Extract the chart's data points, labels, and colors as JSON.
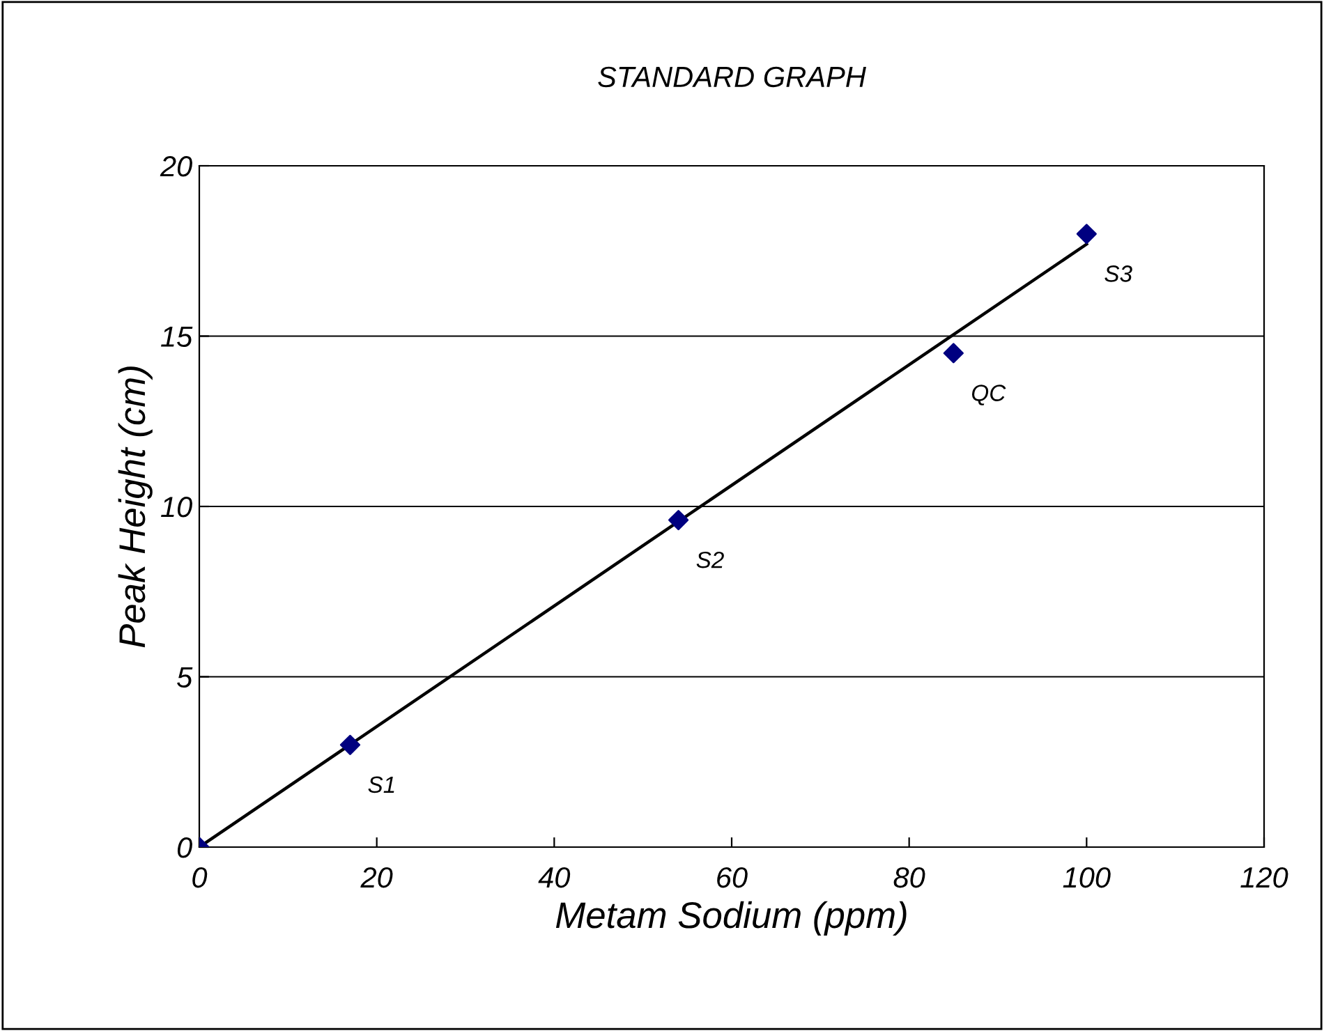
{
  "chart_data": {
    "type": "scatter",
    "title": "STANDARD GRAPH",
    "xlabel": "Metam Sodium (ppm)",
    "ylabel": "Peak Height (cm)",
    "series": [
      {
        "color": "#000080",
        "marker": "diamond",
        "x": [
          0,
          17,
          54,
          85,
          100
        ],
        "values": [
          0,
          3.0,
          9.6,
          14.5,
          18.0
        ]
      },
      {
        "type": "line",
        "color": "#000000",
        "marker": "none",
        "line_style": "solid",
        "x": [
          0,
          100
        ],
        "values": [
          0,
          17.7
        ]
      }
    ],
    "annotations": [
      {
        "text": "S1",
        "x": 17,
        "y": 3.0
      },
      {
        "text": "S2",
        "x": 54,
        "y": 9.6
      },
      {
        "text": "QC",
        "x": 85,
        "y": 14.5
      },
      {
        "text": "S3",
        "x": 100,
        "y": 18.0
      }
    ],
    "xlim": [
      0,
      120
    ],
    "xticks": [
      0,
      20,
      40,
      60,
      80,
      100,
      120
    ],
    "ylim": [
      0,
      20
    ],
    "yticks": [
      0,
      5,
      10,
      15,
      20
    ],
    "grid": "y",
    "legend": false
  }
}
